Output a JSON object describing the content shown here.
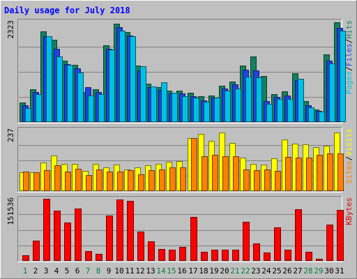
{
  "chart_data": [
    {
      "type": "bar",
      "title": "Daily usage for July 2018",
      "ymax_label": "2323",
      "ylim": [
        0,
        2323
      ],
      "legend": [
        {
          "label": "Pages",
          "color": "#00C0E8"
        },
        {
          "label": "/",
          "color": "#000000"
        },
        {
          "label": "Files",
          "color": "#1E44E4"
        },
        {
          "label": "/",
          "color": "#000000"
        },
        {
          "label": "Hits",
          "color": "#148060"
        }
      ],
      "categories": [
        "1",
        "2",
        "3",
        "4",
        "5",
        "6",
        "7",
        "8",
        "9",
        "10",
        "11",
        "12",
        "13",
        "14",
        "15",
        "16",
        "17",
        "18",
        "19",
        "20",
        "21",
        "22",
        "23",
        "24",
        "25",
        "26",
        "27",
        "28",
        "29",
        "30",
        "31"
      ],
      "weekend_days": [
        "1",
        "7",
        "8",
        "14",
        "15",
        "21",
        "22",
        "28",
        "29"
      ],
      "series": [
        {
          "name": "Hits",
          "color": "#148060",
          "values": [
            450,
            760,
            2100,
            1900,
            1420,
            1330,
            700,
            760,
            1770,
            2270,
            2080,
            1310,
            880,
            800,
            720,
            720,
            680,
            590,
            620,
            840,
            930,
            1310,
            1520,
            1070,
            640,
            710,
            1130,
            480,
            290,
            1560,
            2310
          ]
        },
        {
          "name": "Files",
          "color": "#1E44E4",
          "values": [
            380,
            690,
            1990,
            1700,
            1340,
            1240,
            810,
            690,
            1700,
            2190,
            2000,
            1190,
            800,
            740,
            660,
            660,
            590,
            500,
            560,
            770,
            870,
            1210,
            1190,
            490,
            580,
            610,
            960,
            390,
            260,
            1420,
            2180
          ]
        },
        {
          "name": "Pages",
          "color": "#00C0E8",
          "values": [
            330,
            650,
            1990,
            1510,
            1320,
            1140,
            610,
            650,
            1670,
            2120,
            1990,
            1290,
            820,
            920,
            680,
            600,
            570,
            460,
            560,
            720,
            780,
            1050,
            1040,
            420,
            540,
            530,
            1000,
            340,
            240,
            1350,
            2110
          ]
        }
      ]
    },
    {
      "type": "bar",
      "ymax_label": "237",
      "ylim": [
        0,
        237
      ],
      "legend": [
        {
          "label": "Sites",
          "color": "#FF8000"
        },
        {
          "label": "/",
          "color": "#000000"
        },
        {
          "label": "Visits",
          "color": "#FFFF00"
        }
      ],
      "categories": [
        "1",
        "2",
        "3",
        "4",
        "5",
        "6",
        "7",
        "8",
        "9",
        "10",
        "11",
        "12",
        "13",
        "14",
        "15",
        "16",
        "17",
        "18",
        "19",
        "20",
        "21",
        "22",
        "23",
        "24",
        "25",
        "26",
        "27",
        "28",
        "29",
        "30",
        "31"
      ],
      "series": [
        {
          "name": "Visits",
          "color": "#FFFF00",
          "values": [
            72,
            74,
            110,
            138,
            105,
            105,
            79,
            106,
            92,
            103,
            84,
            92,
            99,
            106,
            113,
            115,
            206,
            220,
            195,
            225,
            187,
            130,
            105,
            102,
            126,
            199,
            182,
            181,
            169,
            175,
            226
          ]
        },
        {
          "name": "Sites",
          "color": "#FF8000",
          "values": [
            75,
            73,
            80,
            99,
            75,
            86,
            63,
            84,
            75,
            75,
            82,
            65,
            80,
            84,
            92,
            92,
            205,
            135,
            140,
            134,
            134,
            84,
            81,
            84,
            79,
            132,
            129,
            130,
            140,
            146,
            145
          ]
        }
      ]
    },
    {
      "type": "bar",
      "ymax_label": "151536",
      "ylim": [
        0,
        151536
      ],
      "legend": [
        {
          "label": "KBytes",
          "color": "#E40000"
        }
      ],
      "categories": [
        "1",
        "2",
        "3",
        "4",
        "5",
        "6",
        "7",
        "8",
        "9",
        "10",
        "11",
        "12",
        "13",
        "14",
        "15",
        "16",
        "17",
        "18",
        "19",
        "20",
        "21",
        "22",
        "23",
        "24",
        "25",
        "26",
        "27",
        "28",
        "29",
        "30",
        "31"
      ],
      "series": [
        {
          "name": "KBytes",
          "color": "#FF0000",
          "values": [
            13000,
            49000,
            151000,
            123000,
            93000,
            127000,
            24000,
            17000,
            111000,
            150000,
            146000,
            72000,
            48000,
            29000,
            27000,
            34000,
            107000,
            22000,
            28000,
            28000,
            28000,
            95000,
            43000,
            20000,
            81000,
            27000,
            126000,
            22000,
            5000,
            89000,
            125000
          ]
        }
      ]
    }
  ]
}
